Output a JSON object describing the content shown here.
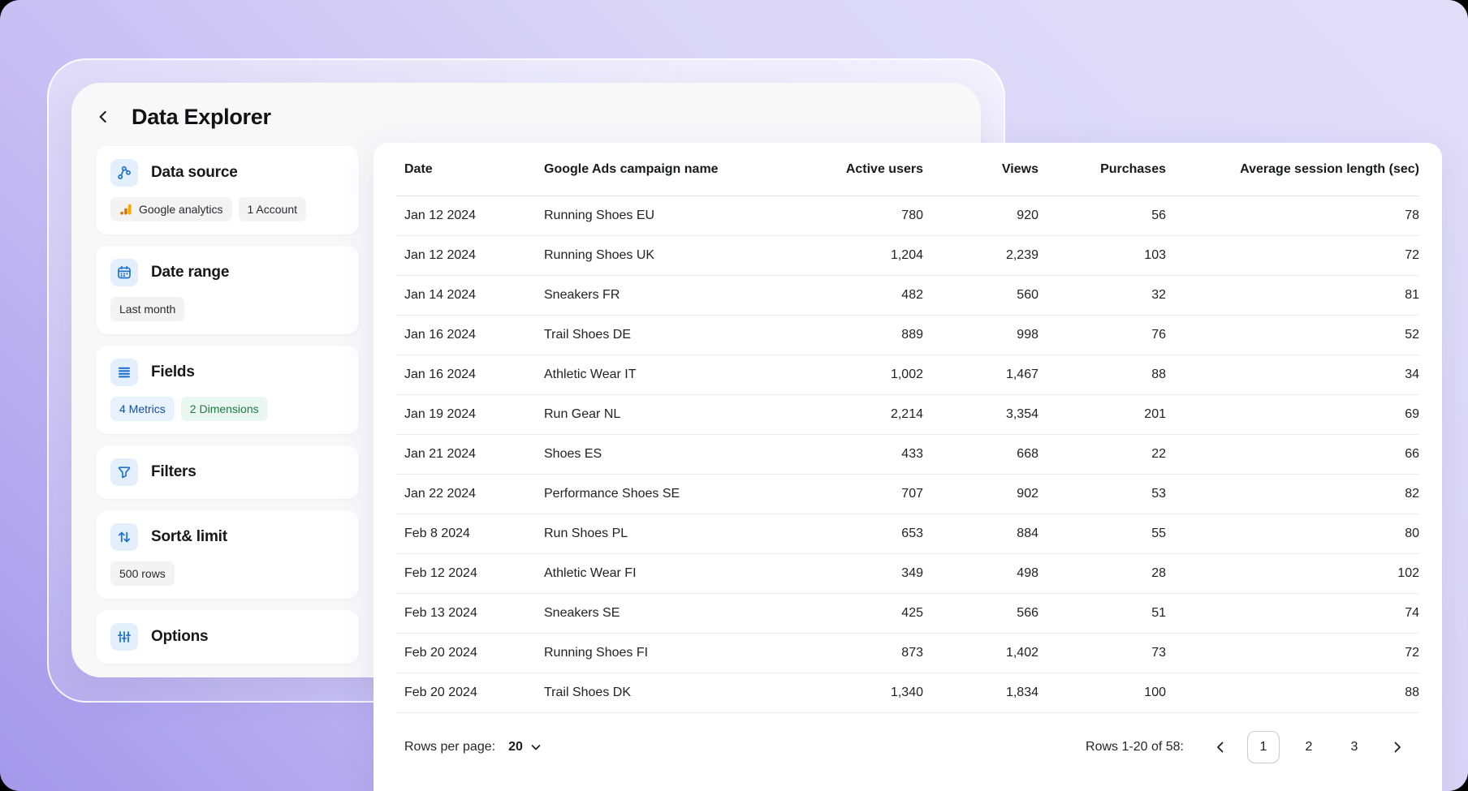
{
  "page": {
    "title": "Data Explorer"
  },
  "sidebar": {
    "sections": [
      {
        "id": "data-source",
        "title": "Data source",
        "icon": "branch-icon",
        "chips": [
          {
            "label": "Google analytics",
            "icon": "google-analytics-icon",
            "style": "gray"
          },
          {
            "label": "1 Account",
            "style": "gray"
          }
        ]
      },
      {
        "id": "date-range",
        "title": "Date range",
        "icon": "calendar-icon",
        "chips": [
          {
            "label": "Last month",
            "style": "gray"
          }
        ]
      },
      {
        "id": "fields",
        "title": "Fields",
        "icon": "list-icon",
        "chips": [
          {
            "label": "4 Metrics",
            "style": "blue"
          },
          {
            "label": "2 Dimensions",
            "style": "green"
          }
        ]
      },
      {
        "id": "filters",
        "title": "Filters",
        "icon": "filter-icon",
        "chips": []
      },
      {
        "id": "sort-limit",
        "title": "Sort& limit",
        "icon": "sort-icon",
        "chips": [
          {
            "label": "500 rows",
            "style": "gray"
          }
        ]
      },
      {
        "id": "options",
        "title": "Options",
        "icon": "sliders-icon",
        "chips": []
      }
    ]
  },
  "table": {
    "columns": [
      {
        "label": "Date",
        "align": "left"
      },
      {
        "label": "Google Ads campaign name",
        "align": "left"
      },
      {
        "label": "Active users",
        "align": "right"
      },
      {
        "label": "Views",
        "align": "right"
      },
      {
        "label": "Purchases",
        "align": "right"
      },
      {
        "label": "Average session length (sec)",
        "align": "right"
      }
    ],
    "rows": [
      [
        "Jan 12 2024",
        "Running Shoes EU",
        "780",
        "920",
        "56",
        "78"
      ],
      [
        "Jan 12 2024",
        "Running Shoes UK",
        "1,204",
        "2,239",
        "103",
        "72"
      ],
      [
        "Jan 14 2024",
        "Sneakers FR",
        "482",
        "560",
        "32",
        "81"
      ],
      [
        "Jan 16 2024",
        "Trail Shoes DE",
        "889",
        "998",
        "76",
        "52"
      ],
      [
        "Jan 16 2024",
        "Athletic Wear IT",
        "1,002",
        "1,467",
        "88",
        "34"
      ],
      [
        "Jan 19 2024",
        "Run Gear NL",
        "2,214",
        "3,354",
        "201",
        "69"
      ],
      [
        "Jan 21 2024",
        "Shoes ES",
        "433",
        "668",
        "22",
        "66"
      ],
      [
        "Jan 22 2024",
        "Performance Shoes SE",
        "707",
        "902",
        "53",
        "82"
      ],
      [
        "Feb 8 2024",
        "Run Shoes PL",
        "653",
        "884",
        "55",
        "80"
      ],
      [
        "Feb 12 2024",
        "Athletic Wear FI",
        "349",
        "498",
        "28",
        "102"
      ],
      [
        "Feb 13 2024",
        "Sneakers SE",
        "425",
        "566",
        "51",
        "74"
      ],
      [
        "Feb 20 2024",
        "Running Shoes FI",
        "873",
        "1,402",
        "73",
        "72"
      ],
      [
        "Feb 20 2024",
        "Trail Shoes DK",
        "1,340",
        "1,834",
        "100",
        "88"
      ]
    ]
  },
  "footer": {
    "rows_per_page_label": "Rows per page:",
    "rows_per_page_value": "20",
    "range_label": "Rows 1-20 of 58:",
    "pages": [
      "1",
      "2",
      "3"
    ],
    "current_page": "1"
  },
  "colors": {
    "accent_blue": "#2173CE",
    "icon_box_bg": "#E4EFFC",
    "ga_amber": "#F9AB00",
    "ga_orange": "#E37400",
    "chip_blue_text": "#174EA6",
    "chip_green_text": "#1D7A48",
    "background_purple": "#A598EB"
  }
}
